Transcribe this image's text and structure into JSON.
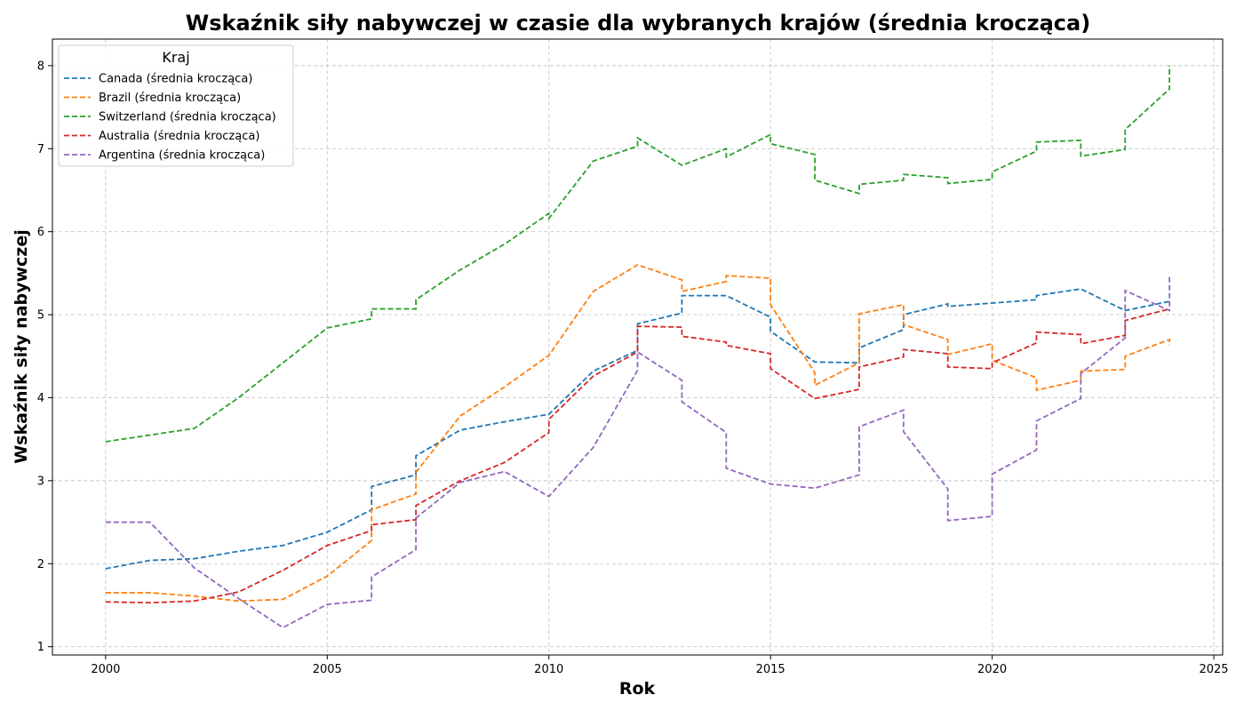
{
  "chart_data": {
    "type": "line",
    "title": "Wskaźnik siły nabywczej w czasie dla wybranych krajów (średnia krocząca)",
    "xlabel": "Rok",
    "ylabel": "Wskaźnik siły nabywczej",
    "xlim": [
      1998.8,
      2025.2
    ],
    "ylim": [
      0.9,
      8.32
    ],
    "xticks": [
      2000,
      2005,
      2010,
      2015,
      2020,
      2025
    ],
    "yticks": [
      1,
      2,
      3,
      4,
      5,
      6,
      7,
      8
    ],
    "grid": true,
    "legend": {
      "title": "Kraj",
      "placement": "top-left"
    },
    "series": [
      {
        "name": "Canada (średnia krocząca)",
        "color": "#1f77b4",
        "points": [
          [
            2000,
            1.94
          ],
          [
            2001,
            2.04
          ],
          [
            2002,
            2.06
          ],
          [
            2003,
            2.15
          ],
          [
            2004,
            2.22
          ],
          [
            2005,
            2.38
          ],
          [
            2006,
            2.65
          ],
          [
            2006,
            2.93
          ],
          [
            2007,
            3.07
          ],
          [
            2007,
            3.3
          ],
          [
            2008,
            3.61
          ],
          [
            2009,
            3.71
          ],
          [
            2010,
            3.8
          ],
          [
            2011,
            4.32
          ],
          [
            2012,
            4.57
          ],
          [
            2012,
            4.89
          ],
          [
            2013,
            5.02
          ],
          [
            2013,
            5.23
          ],
          [
            2014,
            5.23
          ],
          [
            2015,
            4.97
          ],
          [
            2015,
            4.8
          ],
          [
            2016,
            4.43
          ],
          [
            2017,
            4.42
          ],
          [
            2017,
            4.6
          ],
          [
            2018,
            4.82
          ],
          [
            2018,
            5.0
          ],
          [
            2019,
            5.13
          ],
          [
            2019,
            5.1
          ],
          [
            2020,
            5.14
          ],
          [
            2021,
            5.18
          ],
          [
            2021,
            5.23
          ],
          [
            2022,
            5.31
          ],
          [
            2023,
            5.05
          ],
          [
            2024,
            5.16
          ]
        ]
      },
      {
        "name": "Brazil (średnia krocząca)",
        "color": "#ff7f0e",
        "points": [
          [
            2000,
            1.65
          ],
          [
            2001,
            1.65
          ],
          [
            2002,
            1.61
          ],
          [
            2003,
            1.55
          ],
          [
            2004,
            1.57
          ],
          [
            2005,
            1.85
          ],
          [
            2006,
            2.28
          ],
          [
            2006,
            2.65
          ],
          [
            2007,
            2.84
          ],
          [
            2007,
            3.1
          ],
          [
            2008,
            3.78
          ],
          [
            2009,
            4.13
          ],
          [
            2010,
            4.51
          ],
          [
            2011,
            5.28
          ],
          [
            2012,
            5.6
          ],
          [
            2013,
            5.42
          ],
          [
            2013,
            5.28
          ],
          [
            2014,
            5.4
          ],
          [
            2014,
            5.47
          ],
          [
            2015,
            5.44
          ],
          [
            2015,
            5.12
          ],
          [
            2016,
            4.3
          ],
          [
            2016,
            4.15
          ],
          [
            2017,
            4.42
          ],
          [
            2017,
            5.01
          ],
          [
            2018,
            5.12
          ],
          [
            2018,
            4.88
          ],
          [
            2019,
            4.7
          ],
          [
            2019,
            4.52
          ],
          [
            2020,
            4.65
          ],
          [
            2020,
            4.45
          ],
          [
            2021,
            4.24
          ],
          [
            2021,
            4.09
          ],
          [
            2022,
            4.21
          ],
          [
            2022,
            4.32
          ],
          [
            2023,
            4.34
          ],
          [
            2023,
            4.5
          ],
          [
            2024,
            4.7
          ],
          [
            2024,
            4.63
          ]
        ]
      },
      {
        "name": "Switzerland (średnia krocząca)",
        "color": "#2ca02c",
        "points": [
          [
            2000,
            3.47
          ],
          [
            2001,
            3.55
          ],
          [
            2002,
            3.63
          ],
          [
            2003,
            4.0
          ],
          [
            2004,
            4.42
          ],
          [
            2005,
            4.84
          ],
          [
            2006,
            4.95
          ],
          [
            2006,
            5.07
          ],
          [
            2007,
            5.07
          ],
          [
            2007,
            5.18
          ],
          [
            2008,
            5.54
          ],
          [
            2009,
            5.85
          ],
          [
            2010,
            6.22
          ],
          [
            2010,
            6.16
          ],
          [
            2011,
            6.85
          ],
          [
            2012,
            7.03
          ],
          [
            2012,
            7.13
          ],
          [
            2013,
            6.8
          ],
          [
            2014,
            7.0
          ],
          [
            2014,
            6.9
          ],
          [
            2015,
            7.17
          ],
          [
            2015,
            7.06
          ],
          [
            2016,
            6.93
          ],
          [
            2016,
            6.62
          ],
          [
            2017,
            6.46
          ],
          [
            2017,
            6.57
          ],
          [
            2018,
            6.62
          ],
          [
            2018,
            6.69
          ],
          [
            2019,
            6.65
          ],
          [
            2019,
            6.58
          ],
          [
            2020,
            6.63
          ],
          [
            2020,
            6.72
          ],
          [
            2021,
            6.97
          ],
          [
            2021,
            7.08
          ],
          [
            2022,
            7.1
          ],
          [
            2022,
            6.91
          ],
          [
            2023,
            6.99
          ],
          [
            2023,
            7.23
          ],
          [
            2024,
            7.72
          ],
          [
            2024,
            8.0
          ]
        ]
      },
      {
        "name": "Australia (średnia krocząca)",
        "color": "#d62728",
        "points": [
          [
            2000,
            1.54
          ],
          [
            2001,
            1.53
          ],
          [
            2002,
            1.55
          ],
          [
            2003,
            1.66
          ],
          [
            2004,
            1.92
          ],
          [
            2005,
            2.22
          ],
          [
            2006,
            2.4
          ],
          [
            2006,
            2.47
          ],
          [
            2007,
            2.53
          ],
          [
            2007,
            2.7
          ],
          [
            2008,
            3.0
          ],
          [
            2009,
            3.22
          ],
          [
            2010,
            3.58
          ],
          [
            2010,
            3.74
          ],
          [
            2011,
            4.26
          ],
          [
            2012,
            4.55
          ],
          [
            2012,
            4.86
          ],
          [
            2013,
            4.85
          ],
          [
            2013,
            4.74
          ],
          [
            2014,
            4.67
          ],
          [
            2014,
            4.63
          ],
          [
            2015,
            4.53
          ],
          [
            2015,
            4.35
          ],
          [
            2016,
            3.99
          ],
          [
            2017,
            4.1
          ],
          [
            2017,
            4.37
          ],
          [
            2018,
            4.49
          ],
          [
            2018,
            4.58
          ],
          [
            2019,
            4.53
          ],
          [
            2019,
            4.37
          ],
          [
            2020,
            4.35
          ],
          [
            2020,
            4.42
          ],
          [
            2021,
            4.66
          ],
          [
            2021,
            4.79
          ],
          [
            2022,
            4.76
          ],
          [
            2022,
            4.65
          ],
          [
            2023,
            4.75
          ],
          [
            2023,
            4.93
          ],
          [
            2024,
            5.07
          ]
        ]
      },
      {
        "name": "Argentina (średnia krocząca)",
        "color": "#9467bd",
        "points": [
          [
            2000,
            2.5
          ],
          [
            2001,
            2.5
          ],
          [
            2002,
            1.95
          ],
          [
            2003,
            1.58
          ],
          [
            2004,
            1.23
          ],
          [
            2005,
            1.51
          ],
          [
            2006,
            1.56
          ],
          [
            2006,
            1.84
          ],
          [
            2007,
            2.17
          ],
          [
            2007,
            2.55
          ],
          [
            2008,
            2.98
          ],
          [
            2009,
            3.11
          ],
          [
            2010,
            2.81
          ],
          [
            2011,
            3.4
          ],
          [
            2012,
            4.33
          ],
          [
            2012,
            4.55
          ],
          [
            2013,
            4.21
          ],
          [
            2013,
            3.95
          ],
          [
            2014,
            3.58
          ],
          [
            2014,
            3.15
          ],
          [
            2015,
            2.96
          ],
          [
            2016,
            2.91
          ],
          [
            2017,
            3.07
          ],
          [
            2017,
            3.65
          ],
          [
            2018,
            3.85
          ],
          [
            2018,
            3.59
          ],
          [
            2019,
            2.9
          ],
          [
            2019,
            2.52
          ],
          [
            2020,
            2.57
          ],
          [
            2020,
            3.08
          ],
          [
            2021,
            3.37
          ],
          [
            2021,
            3.72
          ],
          [
            2022,
            3.99
          ],
          [
            2022,
            4.29
          ],
          [
            2023,
            4.72
          ],
          [
            2023,
            5.29
          ],
          [
            2024,
            5.05
          ],
          [
            2024,
            5.48
          ]
        ]
      }
    ]
  }
}
